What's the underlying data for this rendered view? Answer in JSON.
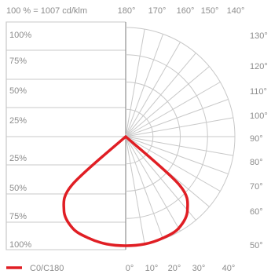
{
  "chart_data": {
    "type": "polar",
    "subtitle": "100 % = 1007 cd/klm",
    "grid": true,
    "legend_position": "bottom-left",
    "radial_labels": [
      "100%",
      "75%",
      "50%",
      "25%",
      "25%",
      "50%",
      "75%",
      "100%"
    ],
    "radial_values": [
      100,
      75,
      50,
      25
    ],
    "angle_labels_top": [
      "180°",
      "170°",
      "160°",
      "150°",
      "140°"
    ],
    "angle_labels_right": [
      "130°",
      "120°",
      "110°",
      "100°",
      "90°",
      "80°",
      "70°",
      "60°",
      "50°"
    ],
    "angle_labels_bottom": [
      "0°",
      "10°",
      "20°",
      "30°",
      "40°"
    ],
    "series": [
      {
        "name": "C0/C180",
        "color": "#e01e24",
        "points": [
          {
            "angle": -60,
            "value": 0
          },
          {
            "angle": -48,
            "value": 66
          },
          {
            "angle": -40,
            "value": 88
          },
          {
            "angle": -30,
            "value": 97
          },
          {
            "angle": -20,
            "value": 99
          },
          {
            "angle": -10,
            "value": 100
          },
          {
            "angle": 0,
            "value": 100
          },
          {
            "angle": 10,
            "value": 100
          },
          {
            "angle": 20,
            "value": 99
          },
          {
            "angle": 30,
            "value": 97
          },
          {
            "angle": 40,
            "value": 88
          },
          {
            "angle": 48,
            "value": 66
          },
          {
            "angle": 60,
            "value": 0
          }
        ]
      }
    ]
  }
}
